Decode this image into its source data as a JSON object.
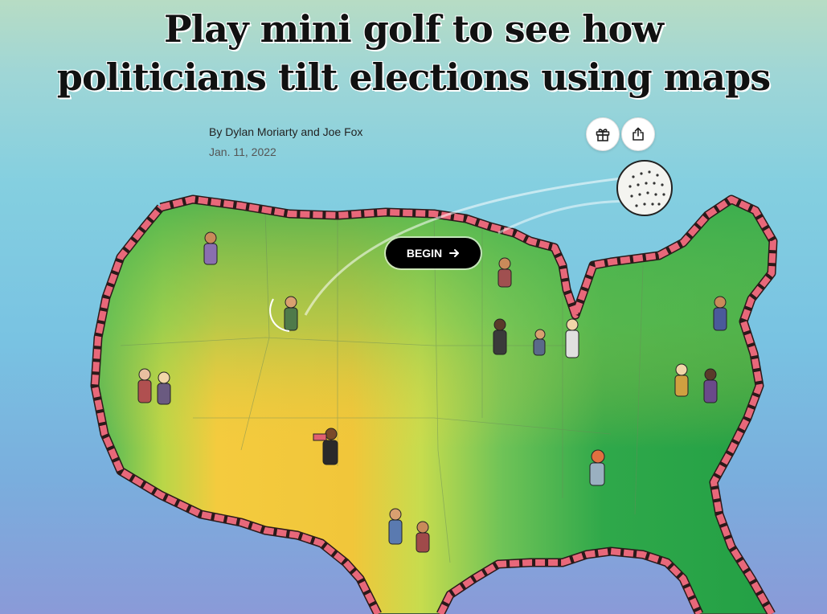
{
  "article": {
    "headline_line1": "Play mini golf to see how",
    "headline_line2": "politicians tilt elections using maps",
    "byline_prefix": "By",
    "authors": "Dylan Moriarty and Joe Fox",
    "date": "Jan. 11, 2022"
  },
  "actions": {
    "gift_icon": "gift-icon",
    "share_icon": "share-icon"
  },
  "map": {
    "begin_label": "BEGIN",
    "begin_icon": "arrow-right-icon"
  },
  "colors": {
    "headline": "#111111",
    "button_bg": "#000000",
    "button_text": "#ffffff",
    "wall": "#e06070",
    "land_green": "#2fa84a",
    "land_yellow": "#f3c93a"
  }
}
